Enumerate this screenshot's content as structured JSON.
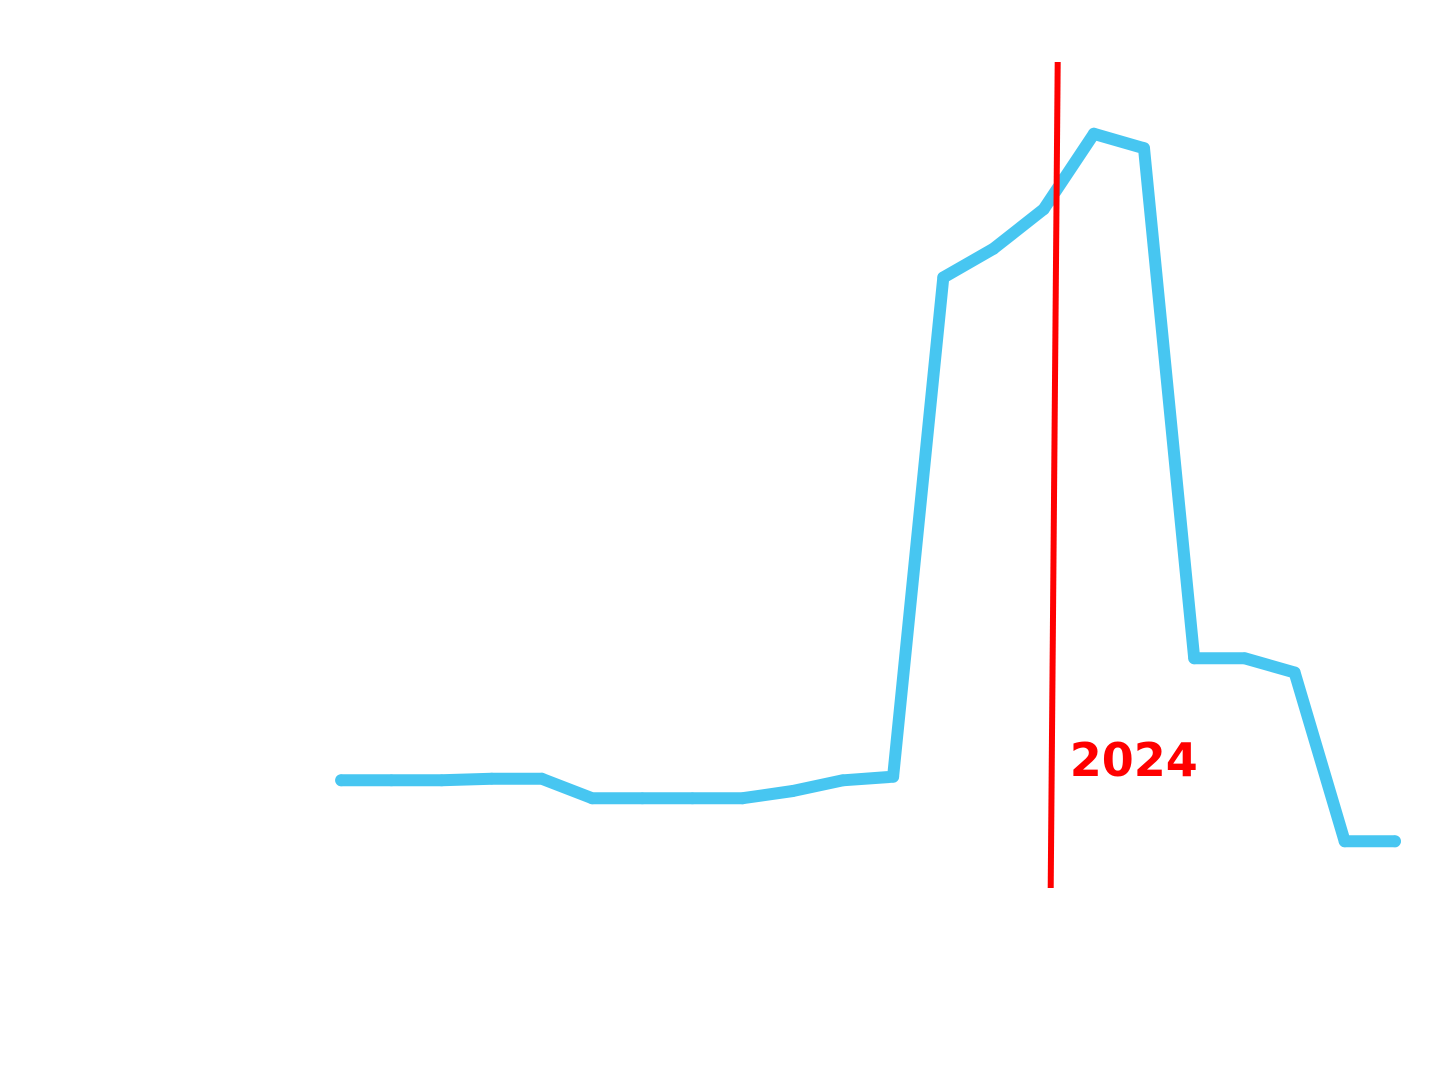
{
  "chart_data": {
    "type": "line",
    "title": "",
    "xlabel": "",
    "ylabel": "",
    "grid": false,
    "legend": "none",
    "series": [
      {
        "color": "#47C6F1",
        "values": [
          1.0,
          1.0,
          1.0,
          1.02,
          1.02,
          0.75,
          0.75,
          0.75,
          0.75,
          0.85,
          1.0,
          1.05,
          8.0,
          8.4,
          8.95,
          10.0,
          9.8,
          2.7,
          2.7,
          2.5,
          0.15,
          0.15
        ]
      }
    ],
    "x_index": [
      0,
      1,
      2,
      3,
      4,
      5,
      6,
      7,
      8,
      9,
      10,
      11,
      12,
      13,
      14,
      15,
      16,
      17,
      18,
      19,
      20,
      21
    ],
    "ylim": [
      -0.5,
      11
    ],
    "xlim": [
      -6.8,
      21.5
    ],
    "annotations": [
      {
        "label": "2024",
        "x": 14.2,
        "color": "#FF0000"
      }
    ]
  }
}
